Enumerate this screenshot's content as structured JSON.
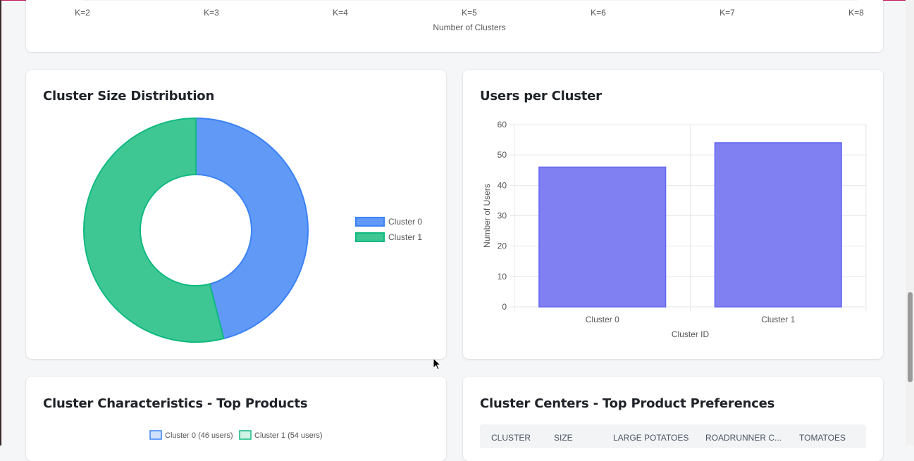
{
  "elbow_card": {
    "x_ticks": [
      "K=2",
      "K=3",
      "K=4",
      "K=5",
      "K=6",
      "K=7",
      "K=8"
    ],
    "x_label": "Number of Clusters"
  },
  "pie_card": {
    "title": "Cluster Size Distribution",
    "legend": [
      {
        "label": "Cluster 0",
        "color": "#6199f7",
        "border": "#3b82f6"
      },
      {
        "label": "Cluster 1",
        "color": "#3fc793",
        "border": "#10b981"
      }
    ]
  },
  "bar_card": {
    "title": "Users per Cluster",
    "y_label": "Number of Users",
    "x_label": "Cluster ID"
  },
  "products_card": {
    "title": "Cluster Characteristics - Top Products",
    "legend": [
      {
        "label": "Cluster 0 (46 users)",
        "color": "#cfe0fb",
        "border": "#3b82f6"
      },
      {
        "label": "Cluster 1 (54 users)",
        "color": "#d1f3e6",
        "border": "#10b981"
      }
    ]
  },
  "centers_card": {
    "title": "Cluster Centers - Top Product Preferences",
    "columns": [
      "CLUSTER",
      "SIZE",
      "LARGE POTATOES",
      "ROADRUNNER C...",
      "TOMATOES"
    ]
  },
  "chart_data": [
    {
      "type": "pie",
      "title": "Cluster Size Distribution",
      "categories": [
        "Cluster 0",
        "Cluster 1"
      ],
      "values": [
        46,
        54
      ],
      "colors": [
        "#6199f7",
        "#3fc793"
      ],
      "legend": "right"
    },
    {
      "type": "bar",
      "title": "Users per Cluster",
      "categories": [
        "Cluster 0",
        "Cluster 1"
      ],
      "values": [
        46,
        54
      ],
      "xlabel": "Cluster ID",
      "ylabel": "Number of Users",
      "ylim": [
        0,
        60
      ],
      "yticks": [
        0,
        10,
        20,
        30,
        40,
        50,
        60
      ],
      "grid": true,
      "color": "#8080f2"
    }
  ]
}
